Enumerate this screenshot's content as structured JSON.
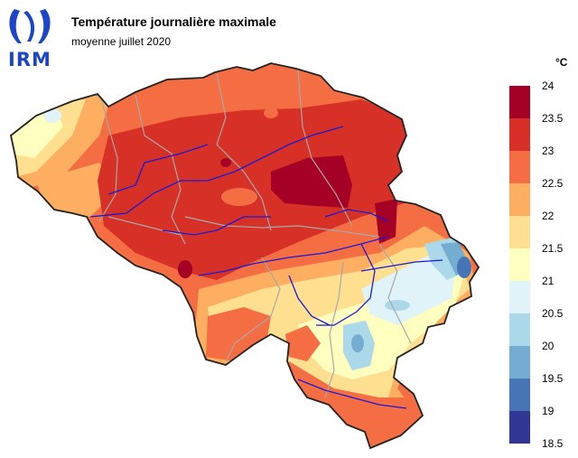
{
  "logo": {
    "text": "IRM",
    "color": "#1d46c6"
  },
  "header": {
    "title": "Température journalière maximale",
    "subtitle": "moyenne juillet 2020"
  },
  "legend": {
    "unit": "°C",
    "ticks": [
      "24",
      "23.5",
      "23",
      "22.5",
      "22",
      "21.5",
      "21",
      "20.5",
      "20",
      "19.5",
      "19",
      "18.5"
    ],
    "bins": [
      {
        "range": "23.5–24",
        "color": "#a50026"
      },
      {
        "range": "23–23.5",
        "color": "#d73027"
      },
      {
        "range": "22.5–23",
        "color": "#f46d43"
      },
      {
        "range": "22–22.5",
        "color": "#fdae61"
      },
      {
        "range": "21.5–22",
        "color": "#fee090"
      },
      {
        "range": "21–21.5",
        "color": "#ffffbf"
      },
      {
        "range": "20.5–21",
        "color": "#e0f3f8"
      },
      {
        "range": "20–20.5",
        "color": "#abd9e9"
      },
      {
        "range": "19.5–20",
        "color": "#74add1"
      },
      {
        "range": "19–19.5",
        "color": "#4575b4"
      },
      {
        "range": "18.5–19",
        "color": "#313695"
      }
    ]
  },
  "map": {
    "region": "Belgique",
    "border_color": "#222222",
    "province_color": "#a8a8a8",
    "river_color": "#1a1ad6"
  }
}
